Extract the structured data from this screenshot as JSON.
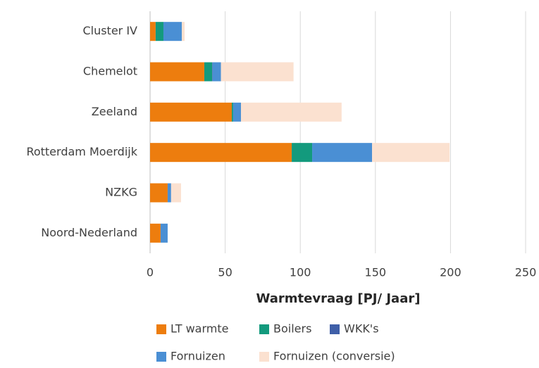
{
  "chart_data": {
    "type": "stacked-bar-horizontal",
    "categories": [
      "Cluster IV",
      "Chemelot",
      "Zeeland",
      "Rotterdam Moerdijk",
      "NZKG",
      "Noord-Nederland"
    ],
    "series": [
      {
        "name": "LT warmte",
        "color": "#ed7d0e",
        "values": [
          3.7,
          36.1,
          54.4,
          94.3,
          11.7,
          7
        ]
      },
      {
        "name": "Boilers",
        "color": "#139a7d",
        "values": [
          5.2,
          5.2,
          0.9,
          13.6,
          0,
          0
        ]
      },
      {
        "name": "WKK's",
        "color": "#3f5fa8",
        "values": [
          0,
          0.3,
          0,
          0,
          0,
          0
        ]
      },
      {
        "name": "Fornuizen",
        "color": "#4a8fd4",
        "values": [
          12.2,
          5.6,
          5.2,
          39.9,
          2.3,
          4.7
        ]
      },
      {
        "name": "Fornuizen (conversie)",
        "color": "#fbe1d0",
        "values": [
          1.9,
          48.3,
          67,
          51.6,
          6.6,
          0
        ]
      }
    ],
    "x_label": "Warmtevraag  [PJ/ Jaar]",
    "xlim": [
      0,
      250
    ],
    "xticks": [
      0,
      50,
      100,
      150,
      200,
      250
    ],
    "grid": true
  }
}
